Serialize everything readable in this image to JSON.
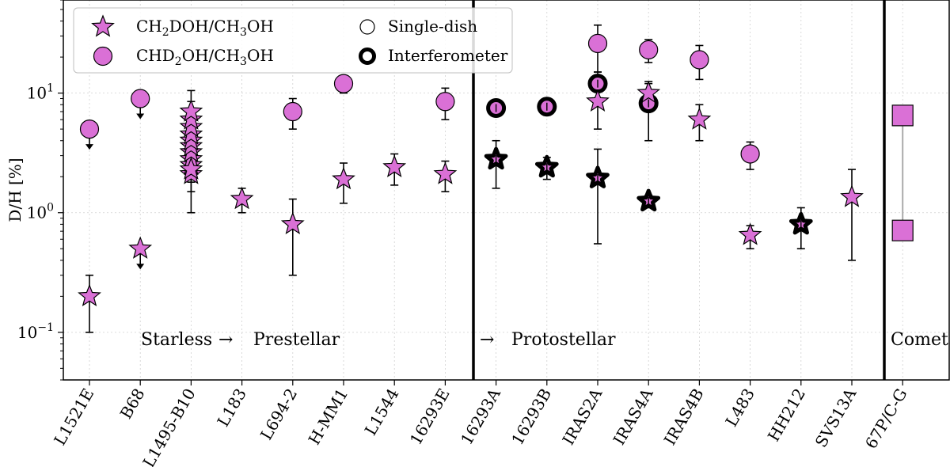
{
  "chart_data": {
    "type": "scatter",
    "ylabel": "D/H [%]",
    "yscale": "log",
    "ylim": [
      0.04,
      60
    ],
    "yticks": [
      {
        "value": 0.1,
        "base": "10",
        "exp": "−1"
      },
      {
        "value": 1,
        "base": "10",
        "exp": "0"
      },
      {
        "value": 10,
        "base": "10",
        "exp": "1"
      }
    ],
    "categories": [
      "L1521E",
      "B68",
      "L1495-B10",
      "L183",
      "L694-2",
      "H-MM1",
      "L1544",
      "16293E",
      "16293A",
      "16293B",
      "IRAS2A",
      "IRAS4A",
      "IRAS4B",
      "L483",
      "HH212",
      "SVS13A",
      "67P/C-G"
    ],
    "legend": {
      "ch2doh": {
        "label_main": "CH",
        "sub1": "2",
        "mid": "DOH/CH",
        "sub2": "3",
        "end": "OH"
      },
      "chd2oh": {
        "label_main": "CHD",
        "sub1": "2",
        "mid": "OH/CH",
        "sub2": "3",
        "end": "OH"
      },
      "single_dish": "Single-dish",
      "interferometer": "Interferometer"
    },
    "annotations": {
      "starless": "Starless",
      "arrow1": "→",
      "prestellar": "Prestellar",
      "arrow2": "→",
      "protostellar": "Protostellar",
      "comet": "Comet"
    },
    "colors": {
      "marker": "#da70d6",
      "edge": "#000000"
    },
    "series": [
      {
        "name": "CH2DOH/CH3OH single-dish",
        "marker": "star",
        "points": [
          {
            "x": 0,
            "y": 0.2,
            "lo": 0.1,
            "hi": 0.3
          },
          {
            "x": 1,
            "y": 0.5,
            "upper_limit": true
          },
          {
            "x": 2,
            "y": 2.1,
            "lo": 1.5,
            "hi": 2.8
          },
          {
            "x": 2,
            "y": 2.5,
            "lo": 1.8,
            "hi": 3.4
          },
          {
            "x": 2,
            "y": 2.8,
            "lo": 1.9,
            "hi": 3.9
          },
          {
            "x": 2,
            "y": 3.2,
            "lo": 2.2,
            "hi": 4.4
          },
          {
            "x": 2,
            "y": 3.6,
            "lo": 2.5,
            "hi": 5.0
          },
          {
            "x": 2,
            "y": 4.0,
            "lo": 2.7,
            "hi": 5.6
          },
          {
            "x": 2,
            "y": 4.5,
            "lo": 3.0,
            "hi": 6.3
          },
          {
            "x": 2,
            "y": 5.2,
            "lo": 3.4,
            "hi": 7.3
          },
          {
            "x": 2,
            "y": 6.0,
            "lo": 3.8,
            "hi": 8.5
          },
          {
            "x": 2,
            "y": 7.0,
            "lo": 4.2,
            "hi": 10.5
          },
          {
            "x": 2,
            "y": 2.3,
            "lo": 1.0,
            "hi": 3.5
          },
          {
            "x": 3,
            "y": 1.3,
            "lo": 1.0,
            "hi": 1.6
          },
          {
            "x": 4,
            "y": 0.8,
            "lo": 0.3,
            "hi": 1.3
          },
          {
            "x": 5,
            "y": 1.9,
            "lo": 1.2,
            "hi": 2.6
          },
          {
            "x": 6,
            "y": 2.4,
            "lo": 1.7,
            "hi": 3.1
          },
          {
            "x": 7,
            "y": 2.1,
            "lo": 1.5,
            "hi": 2.7
          },
          {
            "x": 10,
            "y": 8.5,
            "lo": 5.0,
            "hi": 12.0
          },
          {
            "x": 11,
            "y": 10.0,
            "lo": 8.0,
            "hi": 12.5
          },
          {
            "x": 12,
            "y": 6.0,
            "lo": 4.0,
            "hi": 8.0
          },
          {
            "x": 13,
            "y": 0.65,
            "lo": 0.5,
            "hi": 0.78
          },
          {
            "x": 15,
            "y": 1.35,
            "lo": 0.4,
            "hi": 2.3
          }
        ]
      },
      {
        "name": "CH2DOH/CH3OH interferometer",
        "marker": "star-thick",
        "points": [
          {
            "x": 8,
            "y": 2.8,
            "lo": 1.6,
            "hi": 4.0
          },
          {
            "x": 9,
            "y": 2.4,
            "lo": 1.9,
            "hi": 2.9
          },
          {
            "x": 10,
            "y": 1.95,
            "lo": 0.55,
            "hi": 3.4
          },
          {
            "x": 11,
            "y": 1.25,
            "lo": 1.1,
            "hi": 1.4
          },
          {
            "x": 14,
            "y": 0.8,
            "lo": 0.5,
            "hi": 1.1
          }
        ]
      },
      {
        "name": "CHD2OH/CH3OH single-dish",
        "marker": "circle",
        "points": [
          {
            "x": 0,
            "y": 5.0,
            "upper_limit": true
          },
          {
            "x": 1,
            "y": 9.0,
            "upper_limit": true
          },
          {
            "x": 4,
            "y": 7.0,
            "lo": 5.0,
            "hi": 9.0
          },
          {
            "x": 5,
            "y": 12.0,
            "lo": 10.0,
            "hi": 14.0
          },
          {
            "x": 7,
            "y": 8.5,
            "lo": 6.0,
            "hi": 11.0
          },
          {
            "x": 10,
            "y": 26.0,
            "lo": 15.0,
            "hi": 37.0
          },
          {
            "x": 11,
            "y": 23.0,
            "lo": 18.0,
            "hi": 28.0
          },
          {
            "x": 12,
            "y": 19.0,
            "lo": 13.0,
            "hi": 25.0
          },
          {
            "x": 13,
            "y": 3.1,
            "lo": 2.3,
            "hi": 3.9
          }
        ]
      },
      {
        "name": "CHD2OH/CH3OH interferometer",
        "marker": "circle-thick",
        "points": [
          {
            "x": 8,
            "y": 7.5,
            "lo": 6.8,
            "hi": 8.2
          },
          {
            "x": 9,
            "y": 7.7,
            "lo": 7.0,
            "hi": 8.4
          },
          {
            "x": 10,
            "y": 12.0,
            "lo": 9.0,
            "hi": 15.0
          },
          {
            "x": 11,
            "y": 8.2,
            "lo": 4.0,
            "hi": 12.0
          }
        ]
      },
      {
        "name": "Comet 67P/C-G",
        "marker": "square",
        "points": [
          {
            "x": 16,
            "y": 6.5
          },
          {
            "x": 16,
            "y": 0.71
          }
        ]
      }
    ]
  }
}
